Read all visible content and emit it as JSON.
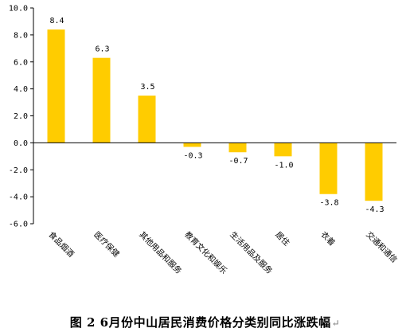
{
  "caption": "图 2  6月份中山居民消费价格分类别同比涨跌幅",
  "caption_mark": "↵",
  "colors": {
    "bar": "#FFCC00",
    "axis": "#000000"
  },
  "chart_data": {
    "type": "bar",
    "title": "",
    "xlabel": "",
    "ylabel": "",
    "ylim": [
      -6.0,
      10.0
    ],
    "yticks": [
      "10.0",
      "8.0",
      "6.0",
      "4.0",
      "2.0",
      "0.0",
      "-2.0",
      "-4.0",
      "-6.0"
    ],
    "grid": false,
    "categories": [
      "食品烟酒",
      "医疗保健",
      "其他用品和服务",
      "教育文化和娱乐",
      "生活用品及服务",
      "居住",
      "衣着",
      "交通和通信"
    ],
    "values": [
      8.4,
      6.3,
      3.5,
      -0.3,
      -0.7,
      -1.0,
      -3.8,
      -4.3
    ],
    "value_labels": [
      "8.4",
      "6.3",
      "3.5",
      "-0.3",
      "-0.7",
      "-1.0",
      "-3.8",
      "-4.3"
    ]
  }
}
